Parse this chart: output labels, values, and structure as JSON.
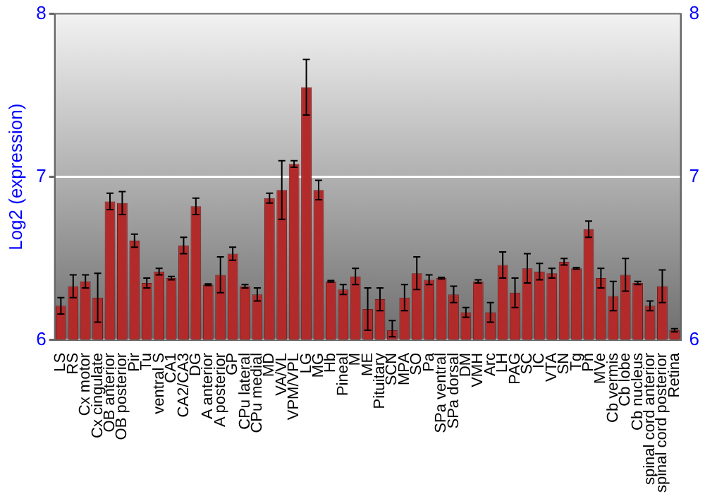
{
  "chart_data": {
    "type": "bar",
    "ylabel": "Log2 (expression)",
    "categories": [
      "LS",
      "RS",
      "Cx motor",
      "Cx cingulate",
      "OB anterior",
      "OB posterior",
      "Pir",
      "Tu",
      "ventral S",
      "CA1",
      "CA2/CA3",
      "DG",
      "A anterior",
      "A posterior",
      "GP",
      "CPu lateral",
      "CPu medial",
      "MD",
      "VA/VL",
      "VPM/VPL",
      "LG",
      "MG",
      "Hb",
      "Pineal",
      "M",
      "ME",
      "Pituitary",
      "SCN",
      "MPA",
      "SO",
      "Pa",
      "SPa ventral",
      "SPa dorsal",
      "DM",
      "VMH",
      "Arc",
      "LH",
      "PAG",
      "SC",
      "IC",
      "VTA",
      "SN",
      "Tg",
      "Pn",
      "MVe",
      "Cb vermis",
      "Cb lobe",
      "Cb nucleus",
      "spinal cord anterior",
      "spinal cord posterior",
      "Retina"
    ],
    "values": [
      6.21,
      6.33,
      6.36,
      6.26,
      6.85,
      6.84,
      6.61,
      6.35,
      6.42,
      6.38,
      6.58,
      6.82,
      6.34,
      6.4,
      6.53,
      6.33,
      6.28,
      6.87,
      6.92,
      7.08,
      7.55,
      6.92,
      6.36,
      6.31,
      6.39,
      6.19,
      6.25,
      6.06,
      6.26,
      6.41,
      6.37,
      6.38,
      6.28,
      6.17,
      6.36,
      6.17,
      6.46,
      6.29,
      6.44,
      6.42,
      6.41,
      6.48,
      6.44,
      6.68,
      6.38,
      6.27,
      6.4,
      6.35,
      6.21,
      6.33,
      6.06
    ],
    "errors": [
      0.05,
      0.07,
      0.04,
      0.15,
      0.05,
      0.07,
      0.04,
      0.03,
      0.02,
      0.01,
      0.05,
      0.05,
      0.005,
      0.11,
      0.04,
      0.01,
      0.04,
      0.03,
      0.18,
      0.02,
      0.17,
      0.06,
      0.005,
      0.03,
      0.05,
      0.13,
      0.07,
      [
        6.02,
        6.12
      ],
      0.08,
      0.1,
      0.03,
      0.005,
      0.05,
      0.03,
      0.01,
      0.06,
      0.08,
      0.09,
      0.09,
      0.05,
      0.03,
      0.02,
      0.005,
      0.05,
      0.06,
      0.09,
      0.1,
      0.01,
      0.03,
      0.1,
      0.01
    ],
    "color": "#b22a2a",
    "ylim": [
      6,
      8
    ],
    "yticks": [
      6,
      7,
      8
    ],
    "y2lim": [
      6,
      8
    ],
    "y2ticks": [
      6,
      7,
      8
    ],
    "grid": "y",
    "legend": false
  }
}
